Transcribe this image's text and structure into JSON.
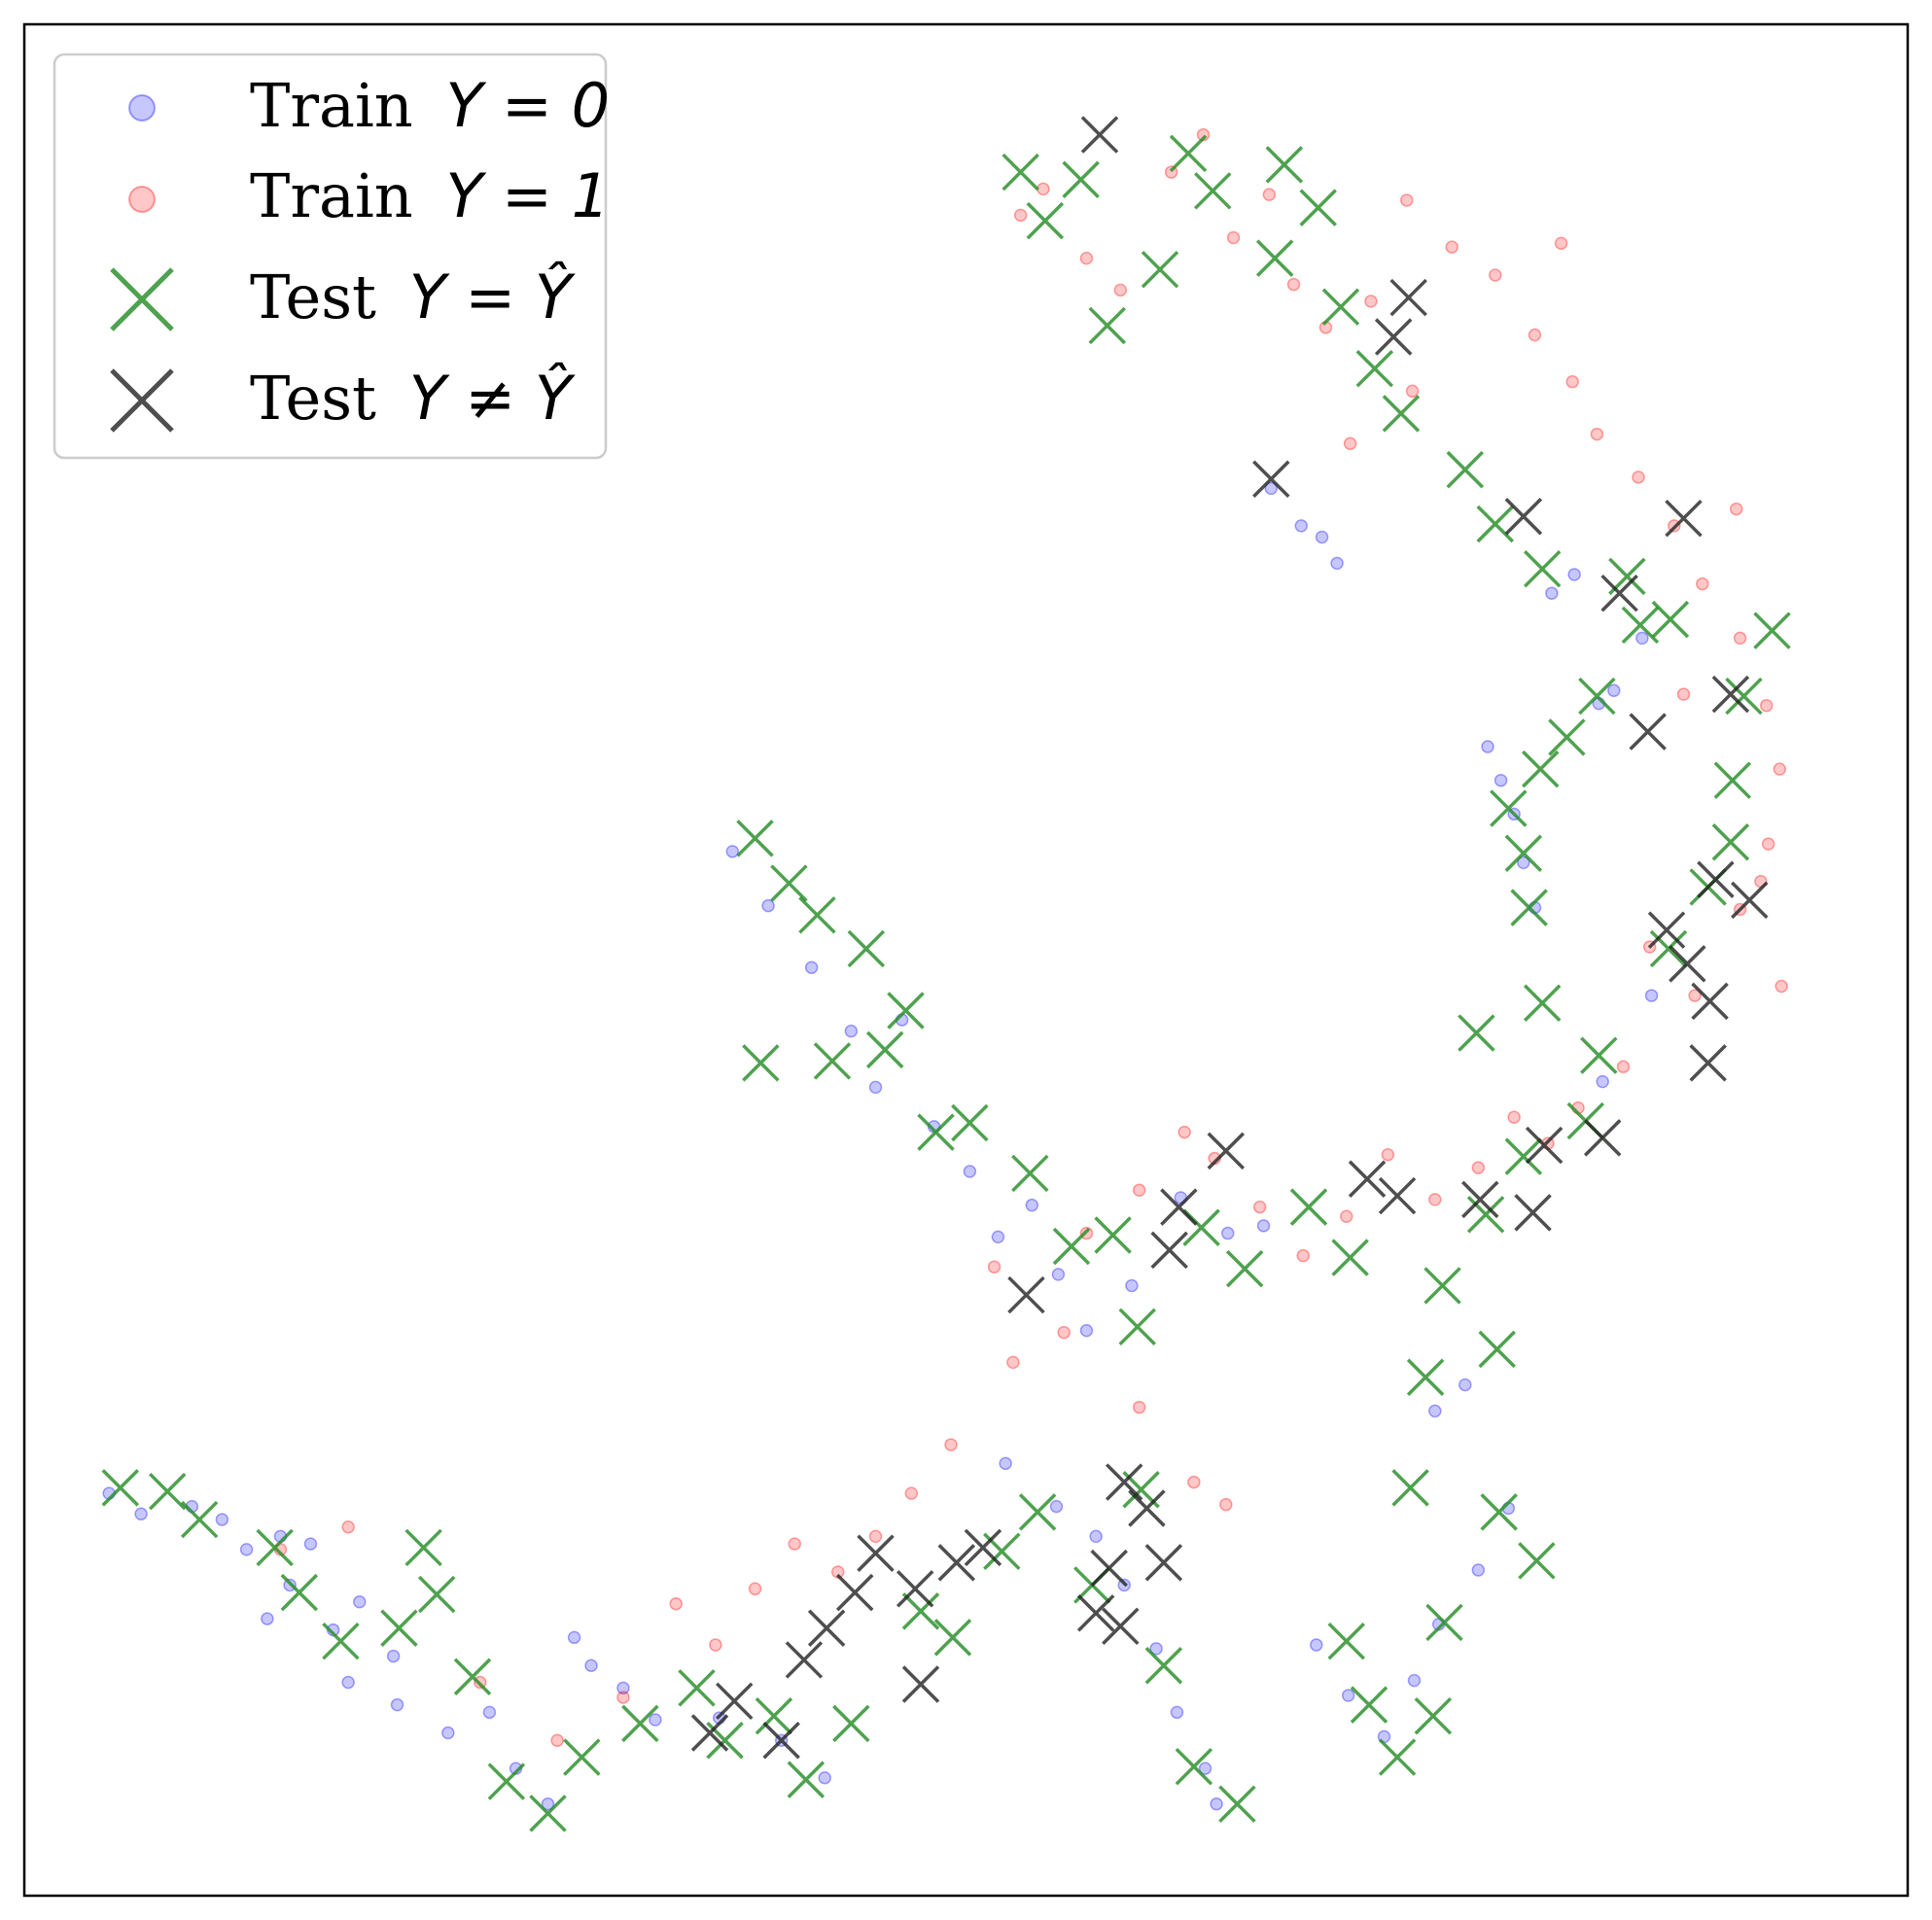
{
  "chart_data": {
    "type": "scatter",
    "title": "",
    "xlabel": "",
    "ylabel": "",
    "xlim": [
      0,
      100
    ],
    "ylim": [
      0,
      100
    ],
    "grid": false,
    "axis_ticks": false,
    "legend": {
      "placement": "top-left",
      "entries": [
        {
          "text": "Train",
          "math": "Y = 0",
          "series": "train_y0"
        },
        {
          "text": "Train",
          "math": "Y = 1",
          "series": "train_y1"
        },
        {
          "text": "Test",
          "math": "Y = Ŷ",
          "series": "test_correct"
        },
        {
          "text": "Test",
          "math": "Y ≠ Ŷ",
          "series": "test_wrong"
        }
      ]
    },
    "colors": {
      "train_y0": "#0000ff",
      "train_y1": "#ff0000",
      "test_correct": "#228b22",
      "test_wrong": "#222222"
    },
    "series": [
      {
        "key": "train_y0",
        "name": "Train Y = 0",
        "marker": "circle",
        "points": [
          [
            4.5,
            21.5
          ],
          [
            6.2,
            20.4
          ],
          [
            8.9,
            20.8
          ],
          [
            10.5,
            20.1
          ],
          [
            11.8,
            18.5
          ],
          [
            13.6,
            19.2
          ],
          [
            15.2,
            18.8
          ],
          [
            14.1,
            16.6
          ],
          [
            12.9,
            14.8
          ],
          [
            16.4,
            14.2
          ],
          [
            17.8,
            15.7
          ],
          [
            19.6,
            12.8
          ],
          [
            17.2,
            11.4
          ],
          [
            19.8,
            10.2
          ],
          [
            22.5,
            8.7
          ],
          [
            24.7,
            9.8
          ],
          [
            26.1,
            6.8
          ],
          [
            27.8,
            4.9
          ],
          [
            30.1,
            12.3
          ],
          [
            31.8,
            11.1
          ],
          [
            33.5,
            9.4
          ],
          [
            29.2,
            13.8
          ],
          [
            36.9,
            9.5
          ],
          [
            40.2,
            8.3
          ],
          [
            42.5,
            6.3
          ],
          [
            52.1,
            23.1
          ],
          [
            54.8,
            20.8
          ],
          [
            56.9,
            19.2
          ],
          [
            58.4,
            16.6
          ],
          [
            60.1,
            13.2
          ],
          [
            61.2,
            9.8
          ],
          [
            62.7,
            6.8
          ],
          [
            63.3,
            4.9
          ],
          [
            68.6,
            13.4
          ],
          [
            70.3,
            10.7
          ],
          [
            72.2,
            8.5
          ],
          [
            73.8,
            11.5
          ],
          [
            75.1,
            14.5
          ],
          [
            77.2,
            17.4
          ],
          [
            78.8,
            20.7
          ],
          [
            74.9,
            25.9
          ],
          [
            76.5,
            27.3
          ],
          [
            37.6,
            55.8
          ],
          [
            39.5,
            52.9
          ],
          [
            41.8,
            49.6
          ],
          [
            43.9,
            46.2
          ],
          [
            45.2,
            43.2
          ],
          [
            46.6,
            46.8
          ],
          [
            48.3,
            41.1
          ],
          [
            50.2,
            38.7
          ],
          [
            51.7,
            35.2
          ],
          [
            53.5,
            36.9
          ],
          [
            54.9,
            33.2
          ],
          [
            56.4,
            30.2
          ],
          [
            58.8,
            32.6
          ],
          [
            61.4,
            37.3
          ],
          [
            63.9,
            35.4
          ],
          [
            65.8,
            35.8
          ],
          [
            66.2,
            75.2
          ],
          [
            67.8,
            73.2
          ],
          [
            68.9,
            72.6
          ],
          [
            69.7,
            71.2
          ],
          [
            77.7,
            61.4
          ],
          [
            78.4,
            59.6
          ],
          [
            79.1,
            57.8
          ],
          [
            79.6,
            55.2
          ],
          [
            80.2,
            52.8
          ],
          [
            83.6,
            63.7
          ],
          [
            84.4,
            64.4
          ],
          [
            85.9,
            67.2
          ],
          [
            81.1,
            69.6
          ],
          [
            82.3,
            70.6
          ],
          [
            83.8,
            43.5
          ],
          [
            86.4,
            48.1
          ]
        ]
      },
      {
        "key": "train_y1",
        "name": "Train Y = 1",
        "marker": "circle",
        "points": [
          [
            52.9,
            89.8
          ],
          [
            54.1,
            91.2
          ],
          [
            56.4,
            87.5
          ],
          [
            58.2,
            85.8
          ],
          [
            60.9,
            92.1
          ],
          [
            62.6,
            94.1
          ],
          [
            64.2,
            88.6
          ],
          [
            66.1,
            90.9
          ],
          [
            67.4,
            86.1
          ],
          [
            69.1,
            83.8
          ],
          [
            71.5,
            85.2
          ],
          [
            73.7,
            80.4
          ],
          [
            75.8,
            88.1
          ],
          [
            78.1,
            86.6
          ],
          [
            80.2,
            83.4
          ],
          [
            82.2,
            80.9
          ],
          [
            83.5,
            78.1
          ],
          [
            85.7,
            75.8
          ],
          [
            87.6,
            73.2
          ],
          [
            89.1,
            70.1
          ],
          [
            91.1,
            67.2
          ],
          [
            92.5,
            63.6
          ],
          [
            93.2,
            60.2
          ],
          [
            92.6,
            56.2
          ],
          [
            91.1,
            52.7
          ],
          [
            88.7,
            48.1
          ],
          [
            86.3,
            50.7
          ],
          [
            84.9,
            44.3
          ],
          [
            82.5,
            42.1
          ],
          [
            80.9,
            40.2
          ],
          [
            79.1,
            41.6
          ],
          [
            77.2,
            38.9
          ],
          [
            74.9,
            37.2
          ],
          [
            72.4,
            39.6
          ],
          [
            70.2,
            36.3
          ],
          [
            67.9,
            34.2
          ],
          [
            65.6,
            36.8
          ],
          [
            63.2,
            39.4
          ],
          [
            61.6,
            40.8
          ],
          [
            59.2,
            37.7
          ],
          [
            56.4,
            35.4
          ],
          [
            55.2,
            30.1
          ],
          [
            52.5,
            28.5
          ],
          [
            51.5,
            33.6
          ],
          [
            49.2,
            24.1
          ],
          [
            47.1,
            21.5
          ],
          [
            45.2,
            19.2
          ],
          [
            43.2,
            17.3
          ],
          [
            40.9,
            18.8
          ],
          [
            38.8,
            16.4
          ],
          [
            36.7,
            13.4
          ],
          [
            34.6,
            15.6
          ],
          [
            31.8,
            10.6
          ],
          [
            28.3,
            8.3
          ],
          [
            24.2,
            11.4
          ],
          [
            17.2,
            19.7
          ],
          [
            13.6,
            18.5
          ],
          [
            59.2,
            26.1
          ],
          [
            62.1,
            22.1
          ],
          [
            63.8,
            20.9
          ],
          [
            93.3,
            48.6
          ],
          [
            92.2,
            54.2
          ],
          [
            88.1,
            64.2
          ],
          [
            90.9,
            74.1
          ],
          [
            81.6,
            88.3
          ],
          [
            70.4,
            77.6
          ],
          [
            73.4,
            90.6
          ]
        ]
      },
      {
        "key": "test_correct",
        "name": "Test Y = Ŷ",
        "marker": "x",
        "points": [
          [
            5.1,
            21.8
          ],
          [
            7.6,
            21.6
          ],
          [
            9.3,
            20.1
          ],
          [
            13.3,
            18.6
          ],
          [
            14.6,
            16.2
          ],
          [
            16.8,
            13.6
          ],
          [
            19.9,
            14.3
          ],
          [
            21.2,
            18.6
          ],
          [
            21.9,
            16.1
          ],
          [
            23.8,
            11.7
          ],
          [
            25.6,
            6.1
          ],
          [
            27.8,
            4.4
          ],
          [
            29.6,
            7.4
          ],
          [
            32.7,
            9.2
          ],
          [
            35.7,
            11.1
          ],
          [
            37.2,
            8.3
          ],
          [
            39.8,
            9.6
          ],
          [
            41.5,
            6.2
          ],
          [
            43.9,
            9.2
          ],
          [
            47.6,
            15.2
          ],
          [
            49.3,
            13.8
          ],
          [
            51.9,
            18.4
          ],
          [
            53.8,
            20.5
          ],
          [
            56.7,
            16.6
          ],
          [
            59.3,
            21.7
          ],
          [
            60.5,
            12.3
          ],
          [
            62.1,
            6.9
          ],
          [
            64.4,
            4.9
          ],
          [
            70.2,
            13.6
          ],
          [
            71.4,
            10.2
          ],
          [
            72.9,
            7.4
          ],
          [
            74.8,
            9.6
          ],
          [
            75.4,
            14.6
          ],
          [
            78.3,
            20.5
          ],
          [
            80.3,
            17.9
          ],
          [
            73.6,
            21.8
          ],
          [
            78.2,
            29.2
          ],
          [
            74.4,
            27.7
          ],
          [
            75.3,
            32.6
          ],
          [
            77.6,
            36.4
          ],
          [
            79.6,
            39.5
          ],
          [
            82.9,
            41.4
          ],
          [
            83.6,
            44.9
          ],
          [
            80.6,
            47.7
          ],
          [
            87.3,
            50.6
          ],
          [
            89.4,
            53.9
          ],
          [
            90.6,
            56.3
          ],
          [
            90.7,
            59.6
          ],
          [
            91.3,
            64.1
          ],
          [
            92.8,
            67.6
          ],
          [
            87.4,
            68.2
          ],
          [
            85.1,
            70.5
          ],
          [
            80.6,
            70.9
          ],
          [
            78.1,
            73.3
          ],
          [
            76.5,
            76.2
          ],
          [
            73.1,
            79.2
          ],
          [
            71.7,
            81.6
          ],
          [
            69.9,
            84.9
          ],
          [
            66.4,
            87.5
          ],
          [
            63.1,
            91.1
          ],
          [
            60.3,
            86.9
          ],
          [
            57.5,
            83.9
          ],
          [
            52.9,
            92.1
          ],
          [
            54.2,
            89.5
          ],
          [
            56.1,
            91.7
          ],
          [
            61.8,
            93.1
          ],
          [
            66.9,
            92.5
          ],
          [
            68.7,
            90.2
          ],
          [
            38.8,
            56.5
          ],
          [
            40.6,
            54.1
          ],
          [
            42.1,
            52.4
          ],
          [
            44.7,
            50.6
          ],
          [
            46.8,
            47.3
          ],
          [
            39.1,
            44.5
          ],
          [
            42.9,
            44.6
          ],
          [
            45.7,
            45.2
          ],
          [
            48.4,
            40.8
          ],
          [
            50.2,
            41.3
          ],
          [
            53.4,
            38.6
          ],
          [
            55.6,
            34.7
          ],
          [
            57.8,
            35.3
          ],
          [
            59.1,
            30.4
          ],
          [
            62.5,
            35.7
          ],
          [
            64.8,
            33.5
          ],
          [
            68.2,
            36.8
          ],
          [
            70.4,
            34.1
          ],
          [
            77.1,
            46.1
          ],
          [
            78.8,
            58.1
          ],
          [
            79.6,
            55.7
          ],
          [
            79.9,
            52.8
          ],
          [
            80.5,
            60.2
          ],
          [
            81.9,
            61.9
          ],
          [
            83.5,
            64.1
          ],
          [
            85.8,
            67.9
          ]
        ]
      },
      {
        "key": "test_wrong",
        "name": "Test Y ≠ Ŷ",
        "marker": "x",
        "points": [
          [
            57.1,
            94.1
          ],
          [
            73.5,
            85.4
          ],
          [
            72.7,
            83.3
          ],
          [
            66.2,
            75.7
          ],
          [
            79.6,
            73.7
          ],
          [
            88.1,
            73.6
          ],
          [
            84.7,
            69.6
          ],
          [
            90.6,
            64.2
          ],
          [
            86.2,
            62.2
          ],
          [
            89.8,
            54.3
          ],
          [
            91.6,
            53.2
          ],
          [
            88.3,
            49.8
          ],
          [
            89.5,
            47.8
          ],
          [
            89.4,
            44.5
          ],
          [
            87.2,
            51.6
          ],
          [
            80.7,
            40.1
          ],
          [
            83.8,
            40.5
          ],
          [
            80.1,
            36.5
          ],
          [
            77.3,
            37.2
          ],
          [
            71.3,
            38.3
          ],
          [
            72.9,
            37.4
          ],
          [
            63.8,
            39.8
          ],
          [
            61.3,
            36.8
          ],
          [
            60.8,
            34.5
          ],
          [
            53.2,
            32.1
          ],
          [
            59.6,
            20.7
          ],
          [
            58.4,
            22.1
          ],
          [
            60.5,
            17.8
          ],
          [
            57.6,
            17.5
          ],
          [
            56.9,
            15.1
          ],
          [
            58.2,
            14.4
          ],
          [
            50.9,
            18.6
          ],
          [
            49.5,
            17.8
          ],
          [
            47.3,
            16.4
          ],
          [
            45.2,
            18.3
          ],
          [
            44.1,
            16.2
          ],
          [
            42.6,
            14.3
          ],
          [
            41.4,
            12.6
          ],
          [
            37.7,
            10.4
          ],
          [
            36.4,
            8.7
          ],
          [
            40.2,
            8.3
          ],
          [
            47.6,
            11.3
          ]
        ]
      }
    ]
  }
}
